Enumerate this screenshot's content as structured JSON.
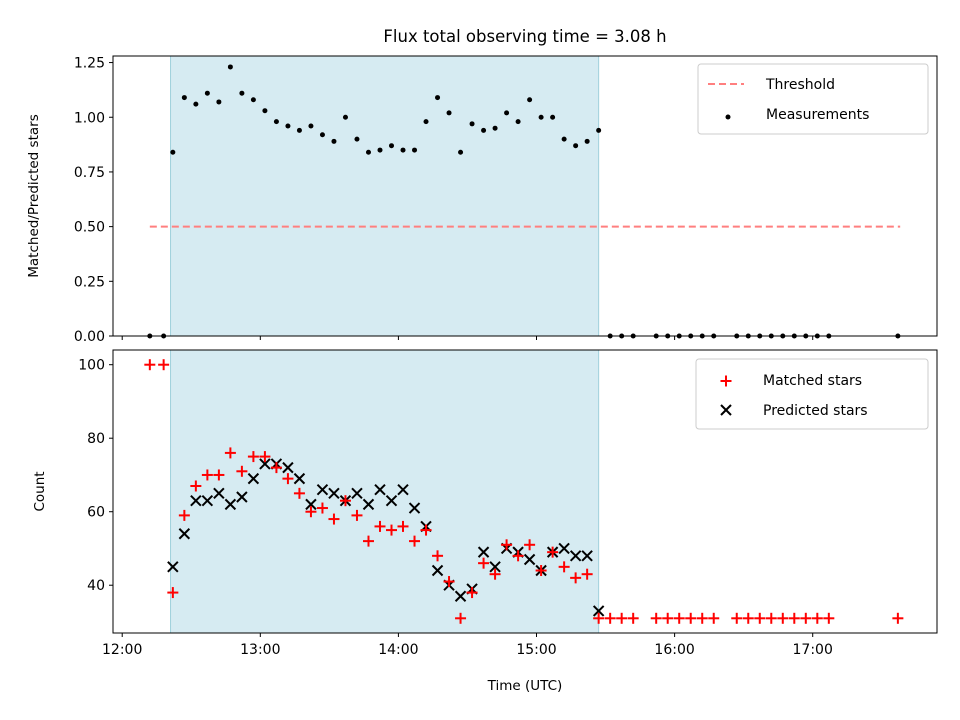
{
  "title": "Flux total observing time = 3.08 h",
  "chart_data": [
    {
      "type": "scatter",
      "panel": "top",
      "ylabel": "Matched/Predicted stars",
      "ylim": [
        0,
        1.28
      ],
      "yticks": [
        0.0,
        0.25,
        0.5,
        0.75,
        1.0,
        1.25
      ],
      "ytick_labels": [
        "0.00",
        "0.25",
        "0.50",
        "0.75",
        "1.00",
        "1.25"
      ],
      "grid": false,
      "legend_placement": "top-right",
      "shaded_interval": {
        "start": "12:21",
        "end": "15:27",
        "color": "#add8e6"
      },
      "threshold": {
        "name": "Threshold",
        "value": 0.5,
        "x": [
          "12:12",
          "17:38"
        ],
        "color": "#ff7f7f"
      },
      "series": [
        {
          "name": "Measurements",
          "color": "#000000",
          "marker": "dot",
          "x": [
            "12:12",
            "12:18",
            "12:22",
            "12:27",
            "12:32",
            "12:37",
            "12:42",
            "12:47",
            "12:52",
            "12:57",
            "13:02",
            "13:07",
            "13:12",
            "13:17",
            "13:22",
            "13:27",
            "13:32",
            "13:37",
            "13:42",
            "13:47",
            "13:52",
            "13:57",
            "14:02",
            "14:07",
            "14:12",
            "14:17",
            "14:22",
            "14:27",
            "14:32",
            "14:37",
            "14:42",
            "14:47",
            "14:52",
            "14:57",
            "15:02",
            "15:07",
            "15:12",
            "15:17",
            "15:22",
            "15:27",
            "15:32",
            "15:37",
            "15:42",
            "15:52",
            "15:57",
            "16:02",
            "16:07",
            "16:12",
            "16:17",
            "16:27",
            "16:32",
            "16:37",
            "16:42",
            "16:47",
            "16:52",
            "16:57",
            "17:02",
            "17:07",
            "17:37"
          ],
          "y": [
            0.0,
            0.0,
            0.84,
            1.09,
            1.06,
            1.11,
            1.07,
            1.23,
            1.11,
            1.08,
            1.03,
            0.98,
            0.96,
            0.94,
            0.96,
            0.92,
            0.89,
            1.0,
            0.9,
            0.84,
            0.85,
            0.87,
            0.85,
            0.85,
            0.98,
            1.09,
            1.02,
            0.84,
            0.97,
            0.94,
            0.95,
            1.02,
            0.98,
            1.08,
            1.0,
            1.0,
            0.9,
            0.87,
            0.89,
            0.94,
            0.0,
            0.0,
            0.0,
            0.0,
            0.0,
            0.0,
            0.0,
            0.0,
            0.0,
            0.0,
            0.0,
            0.0,
            0.0,
            0.0,
            0.0,
            0.0,
            0.0,
            0.0,
            0.0
          ]
        }
      ]
    },
    {
      "type": "scatter",
      "panel": "bottom",
      "xlabel": "Time (UTC)",
      "ylabel": "Count",
      "xlim": [
        "11:56",
        "17:54"
      ],
      "xticks": [
        "12:00",
        "13:00",
        "14:00",
        "15:00",
        "16:00",
        "17:00"
      ],
      "ylim": [
        27,
        104
      ],
      "yticks": [
        40,
        60,
        80,
        100
      ],
      "ytick_labels": [
        "40",
        "60",
        "80",
        "100"
      ],
      "grid": false,
      "legend_placement": "top-right",
      "shaded_interval": {
        "start": "12:21",
        "end": "15:27",
        "color": "#add8e6"
      },
      "series": [
        {
          "name": "Matched stars",
          "color": "#ff0000",
          "marker": "plus",
          "x": [
            "12:12",
            "12:18",
            "12:22",
            "12:27",
            "12:32",
            "12:37",
            "12:42",
            "12:47",
            "12:52",
            "12:57",
            "13:02",
            "13:07",
            "13:12",
            "13:17",
            "13:22",
            "13:27",
            "13:32",
            "13:37",
            "13:42",
            "13:47",
            "13:52",
            "13:57",
            "14:02",
            "14:07",
            "14:12",
            "14:17",
            "14:22",
            "14:27",
            "14:32",
            "14:37",
            "14:42",
            "14:47",
            "14:52",
            "14:57",
            "15:02",
            "15:07",
            "15:12",
            "15:17",
            "15:22",
            "15:27",
            "15:32",
            "15:37",
            "15:42",
            "15:52",
            "15:57",
            "16:02",
            "16:07",
            "16:12",
            "16:17",
            "16:27",
            "16:32",
            "16:37",
            "16:42",
            "16:47",
            "16:52",
            "16:57",
            "17:02",
            "17:07",
            "17:37"
          ],
          "y": [
            100,
            100,
            38,
            59,
            67,
            70,
            70,
            76,
            71,
            75,
            75,
            72,
            69,
            65,
            60,
            61,
            58,
            63,
            59,
            52,
            56,
            55,
            56,
            52,
            55,
            48,
            41,
            31,
            38,
            46,
            43,
            51,
            48,
            51,
            44,
            49,
            45,
            42,
            43,
            31,
            31,
            31,
            31,
            31,
            31,
            31,
            31,
            31,
            31,
            31,
            31,
            31,
            31,
            31,
            31,
            31,
            31,
            31,
            31
          ]
        },
        {
          "name": "Predicted stars",
          "color": "#000000",
          "marker": "x",
          "x": [
            "12:22",
            "12:27",
            "12:32",
            "12:37",
            "12:42",
            "12:47",
            "12:52",
            "12:57",
            "13:02",
            "13:07",
            "13:12",
            "13:17",
            "13:22",
            "13:27",
            "13:32",
            "13:37",
            "13:42",
            "13:47",
            "13:52",
            "13:57",
            "14:02",
            "14:07",
            "14:12",
            "14:17",
            "14:22",
            "14:27",
            "14:32",
            "14:37",
            "14:42",
            "14:47",
            "14:52",
            "14:57",
            "15:02",
            "15:07",
            "15:12",
            "15:17",
            "15:22",
            "15:27"
          ],
          "y": [
            45,
            54,
            63,
            63,
            65,
            62,
            64,
            69,
            73,
            73,
            72,
            69,
            62,
            66,
            65,
            63,
            65,
            62,
            66,
            63,
            66,
            61,
            56,
            44,
            40,
            37,
            39,
            49,
            45,
            50,
            49,
            47,
            44,
            49,
            50,
            48,
            48,
            33
          ]
        }
      ]
    }
  ]
}
